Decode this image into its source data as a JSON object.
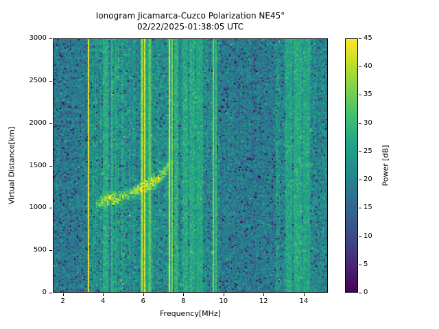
{
  "chart_data": {
    "type": "heatmap",
    "title": "Ionogram Jicamarca-Cuzco Polarization NE45°",
    "subtitle": "02/22/2025-01:38:05 UTC",
    "xlabel": "Frequency[MHz]",
    "ylabel": "Virtual Distance[km]",
    "xlim": [
      1.5,
      15.2
    ],
    "ylim": [
      0,
      3000
    ],
    "x_ticks": [
      2,
      4,
      6,
      8,
      10,
      12,
      14
    ],
    "y_ticks": [
      0,
      500,
      1000,
      1500,
      2000,
      2500,
      3000
    ],
    "grid": false,
    "legend": "none",
    "colorbar": {
      "label": "Power [dB]",
      "range": [
        0,
        45
      ],
      "ticks": [
        0,
        5,
        10,
        15,
        20,
        25,
        30,
        35,
        40,
        45
      ],
      "colormap": "viridis",
      "stops": [
        [
          0,
          "#440154"
        ],
        [
          0.1,
          "#482475"
        ],
        [
          0.2,
          "#414487"
        ],
        [
          0.3,
          "#355f8d"
        ],
        [
          0.4,
          "#2a788e"
        ],
        [
          0.5,
          "#21918c"
        ],
        [
          0.6,
          "#22a884"
        ],
        [
          0.7,
          "#44bf70"
        ],
        [
          0.8,
          "#7ad151"
        ],
        [
          0.9,
          "#bddf26"
        ],
        [
          1,
          "#fde725"
        ]
      ]
    },
    "noise": {
      "mean_db": 21,
      "std_db": 3.4,
      "dark_speckle_prob": 0.06,
      "bright_speckle_prob": 0.02
    },
    "bands": [
      {
        "f0": 1.5,
        "f1": 3.3,
        "offset_db": -2.5,
        "texture": 0.5
      },
      {
        "f0": 3.3,
        "f1": 5.6,
        "offset_db": 1.5,
        "texture": 1.4
      },
      {
        "f0": 5.6,
        "f1": 7.2,
        "offset_db": 0.3,
        "texture": 0.8
      },
      {
        "f0": 7.2,
        "f1": 9.0,
        "offset_db": 1.2,
        "texture": 1.5
      },
      {
        "f0": 9.0,
        "f1": 9.8,
        "offset_db": 0.0,
        "texture": 0.7
      },
      {
        "f0": 9.8,
        "f1": 12.6,
        "offset_db": -2.8,
        "texture": 0.5
      },
      {
        "f0": 12.6,
        "f1": 14.6,
        "offset_db": 0.8,
        "texture": 1.4
      },
      {
        "f0": 14.6,
        "f1": 15.2,
        "offset_db": -0.5,
        "texture": 0.7
      }
    ],
    "rfi_stripes": [
      {
        "freq_mhz": 3.25,
        "width_mhz": 0.06,
        "power_db": 45
      },
      {
        "freq_mhz": 4.43,
        "width_mhz": 0.05,
        "power_db": 35
      },
      {
        "freq_mhz": 4.62,
        "width_mhz": 0.04,
        "power_db": 29
      },
      {
        "freq_mhz": 5.36,
        "width_mhz": 0.04,
        "power_db": 29
      },
      {
        "freq_mhz": 5.94,
        "width_mhz": 0.07,
        "power_db": 45
      },
      {
        "freq_mhz": 6.07,
        "width_mhz": 0.06,
        "power_db": 44
      },
      {
        "freq_mhz": 6.31,
        "width_mhz": 0.06,
        "power_db": 45
      },
      {
        "freq_mhz": 7.31,
        "width_mhz": 0.07,
        "power_db": 45
      },
      {
        "freq_mhz": 7.44,
        "width_mhz": 0.04,
        "power_db": 36
      },
      {
        "freq_mhz": 9.52,
        "width_mhz": 0.05,
        "power_db": 45
      },
      {
        "freq_mhz": 9.66,
        "width_mhz": 0.04,
        "power_db": 43
      }
    ],
    "faint_stripes": [
      {
        "freq_mhz": 4.1,
        "width_mhz": 0.12,
        "power_db": 27
      },
      {
        "freq_mhz": 6.12,
        "width_mhz": 0.3,
        "power_db": 25
      },
      {
        "freq_mhz": 7.62,
        "width_mhz": 0.1,
        "power_db": 28
      },
      {
        "freq_mhz": 8.1,
        "width_mhz": 0.16,
        "power_db": 27
      },
      {
        "freq_mhz": 8.45,
        "width_mhz": 0.12,
        "power_db": 27
      },
      {
        "freq_mhz": 8.8,
        "width_mhz": 0.16,
        "power_db": 26
      },
      {
        "freq_mhz": 13.3,
        "width_mhz": 0.18,
        "power_db": 26
      },
      {
        "freq_mhz": 13.75,
        "width_mhz": 0.2,
        "power_db": 27
      },
      {
        "freq_mhz": 14.15,
        "width_mhz": 0.16,
        "power_db": 26
      }
    ],
    "echo_trace": {
      "points_mhz_km": [
        [
          3.6,
          1030
        ],
        [
          3.8,
          1050
        ],
        [
          4.0,
          1075
        ],
        [
          4.2,
          1095
        ],
        [
          4.5,
          1110
        ],
        [
          4.8,
          1125
        ],
        [
          5.1,
          1145
        ],
        [
          5.4,
          1170
        ],
        [
          5.7,
          1200
        ],
        [
          5.95,
          1230
        ],
        [
          6.15,
          1255
        ],
        [
          6.35,
          1285
        ],
        [
          6.55,
          1315
        ],
        [
          6.75,
          1350
        ],
        [
          6.95,
          1395
        ],
        [
          7.15,
          1450
        ],
        [
          7.35,
          1520
        ],
        [
          7.5,
          1600
        ]
      ],
      "amplitude_db": [
        30,
        36,
        40,
        42,
        41,
        38,
        36,
        36,
        39,
        44,
        45,
        44,
        42,
        40,
        38,
        36,
        34,
        30
      ],
      "spread_km": 80
    },
    "seed": 42
  }
}
